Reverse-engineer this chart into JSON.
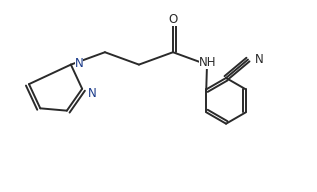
{
  "background": "#ffffff",
  "line_color": "#2a2a2a",
  "line_width": 1.4,
  "font_size": 8.5,
  "figsize": [
    3.17,
    1.92
  ],
  "dpi": 100,
  "xlim": [
    0.0,
    3.2
  ],
  "ylim": [
    0.0,
    2.0
  ]
}
